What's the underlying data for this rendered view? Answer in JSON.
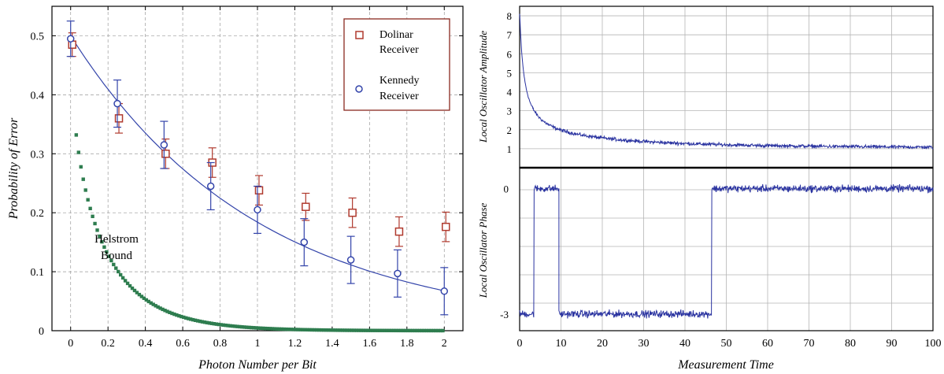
{
  "chart_data": [
    {
      "id": "left",
      "type": "scatter",
      "xlabel": "Photon Number per Bit",
      "ylabel": "Probability of Error",
      "xlim": [
        -0.1,
        2.1
      ],
      "ylim": [
        0,
        0.55
      ],
      "xticks": [
        0,
        0.2,
        0.4,
        0.6,
        0.8,
        1,
        1.2,
        1.4,
        1.6,
        1.8,
        2
      ],
      "xtick_labels": [
        "0",
        "0.2",
        "0.4",
        "0.6",
        "0.8",
        "1",
        "1.2",
        "1.4",
        "1.6",
        "1.8",
        "2"
      ],
      "yticks": [
        0,
        0.1,
        0.2,
        0.3,
        0.4,
        0.5
      ],
      "ytick_labels": [
        "0",
        "0.1",
        "0.2",
        "0.3",
        "0.4",
        "0.5"
      ],
      "grid": true,
      "legend_position": "top-right",
      "series": [
        {
          "name": "Dolinar Receiver",
          "marker": "square",
          "color": "#b03a2e",
          "x": [
            0,
            0.25,
            0.5,
            0.75,
            1.0,
            1.25,
            1.5,
            1.75,
            2.0
          ],
          "y": [
            0.485,
            0.36,
            0.3,
            0.285,
            0.238,
            0.21,
            0.2,
            0.168,
            0.176
          ],
          "err": [
            0.02,
            0.025,
            0.025,
            0.025,
            0.025,
            0.023,
            0.025,
            0.025,
            0.025
          ]
        },
        {
          "name": "Kennedy Receiver",
          "marker": "circle",
          "color": "#3344aa",
          "x": [
            0,
            0.25,
            0.5,
            0.75,
            1.0,
            1.25,
            1.5,
            1.75,
            2.0
          ],
          "y": [
            0.495,
            0.385,
            0.315,
            0.245,
            0.205,
            0.15,
            0.12,
            0.097,
            0.067
          ],
          "err": [
            0.03,
            0.04,
            0.04,
            0.04,
            0.04,
            0.04,
            0.04,
            0.04,
            0.04
          ]
        }
      ],
      "fit_curve": {
        "color": "#3344aa",
        "function": "0.5*exp(-2*n)"
      },
      "helstrom": {
        "color": "#2e7d4f",
        "label_line1": "Helstrom",
        "label_line2": "Bound"
      },
      "legend": {
        "dolinar_line1": "Dolinar",
        "dolinar_line2": "Receiver",
        "kennedy_line1": "Kennedy",
        "kennedy_line2": "Receiver"
      }
    },
    {
      "id": "top-right",
      "type": "line",
      "ylabel": "Local Oscillator Amplitude",
      "xlim": [
        0,
        100
      ],
      "ylim": [
        0,
        8.5
      ],
      "yticks": [
        1,
        2,
        3,
        4,
        5,
        6,
        7,
        8
      ],
      "ytick_labels": [
        "1",
        "2",
        "3",
        "4",
        "5",
        "6",
        "7",
        "8"
      ],
      "grid": true,
      "color": "#2a33a0",
      "trend": "decays from 8 at t=0 toward ~1 at t=100"
    },
    {
      "id": "bottom-right",
      "type": "line",
      "xlabel": "Measurement Time",
      "ylabel": "Local Oscillator Phase",
      "xlim": [
        0,
        100
      ],
      "ylim": [
        -3.4,
        0.5
      ],
      "xticks": [
        0,
        10,
        20,
        30,
        40,
        50,
        60,
        70,
        80,
        90,
        100
      ],
      "xtick_labels": [
        "0",
        "10",
        "20",
        "30",
        "40",
        "50",
        "60",
        "70",
        "80",
        "90",
        "100"
      ],
      "yticks": [
        0,
        -3
      ],
      "ytick_labels": [
        "0",
        "-3"
      ],
      "grid": true,
      "color": "#2a33a0",
      "segments": [
        {
          "x0": 0,
          "x1": 3.5,
          "y": -3
        },
        {
          "x0": 3.5,
          "x1": 9.5,
          "y": 0
        },
        {
          "x0": 9.5,
          "x1": 46.5,
          "y": -3
        },
        {
          "x0": 46.5,
          "x1": 100,
          "y": 0
        }
      ]
    }
  ]
}
